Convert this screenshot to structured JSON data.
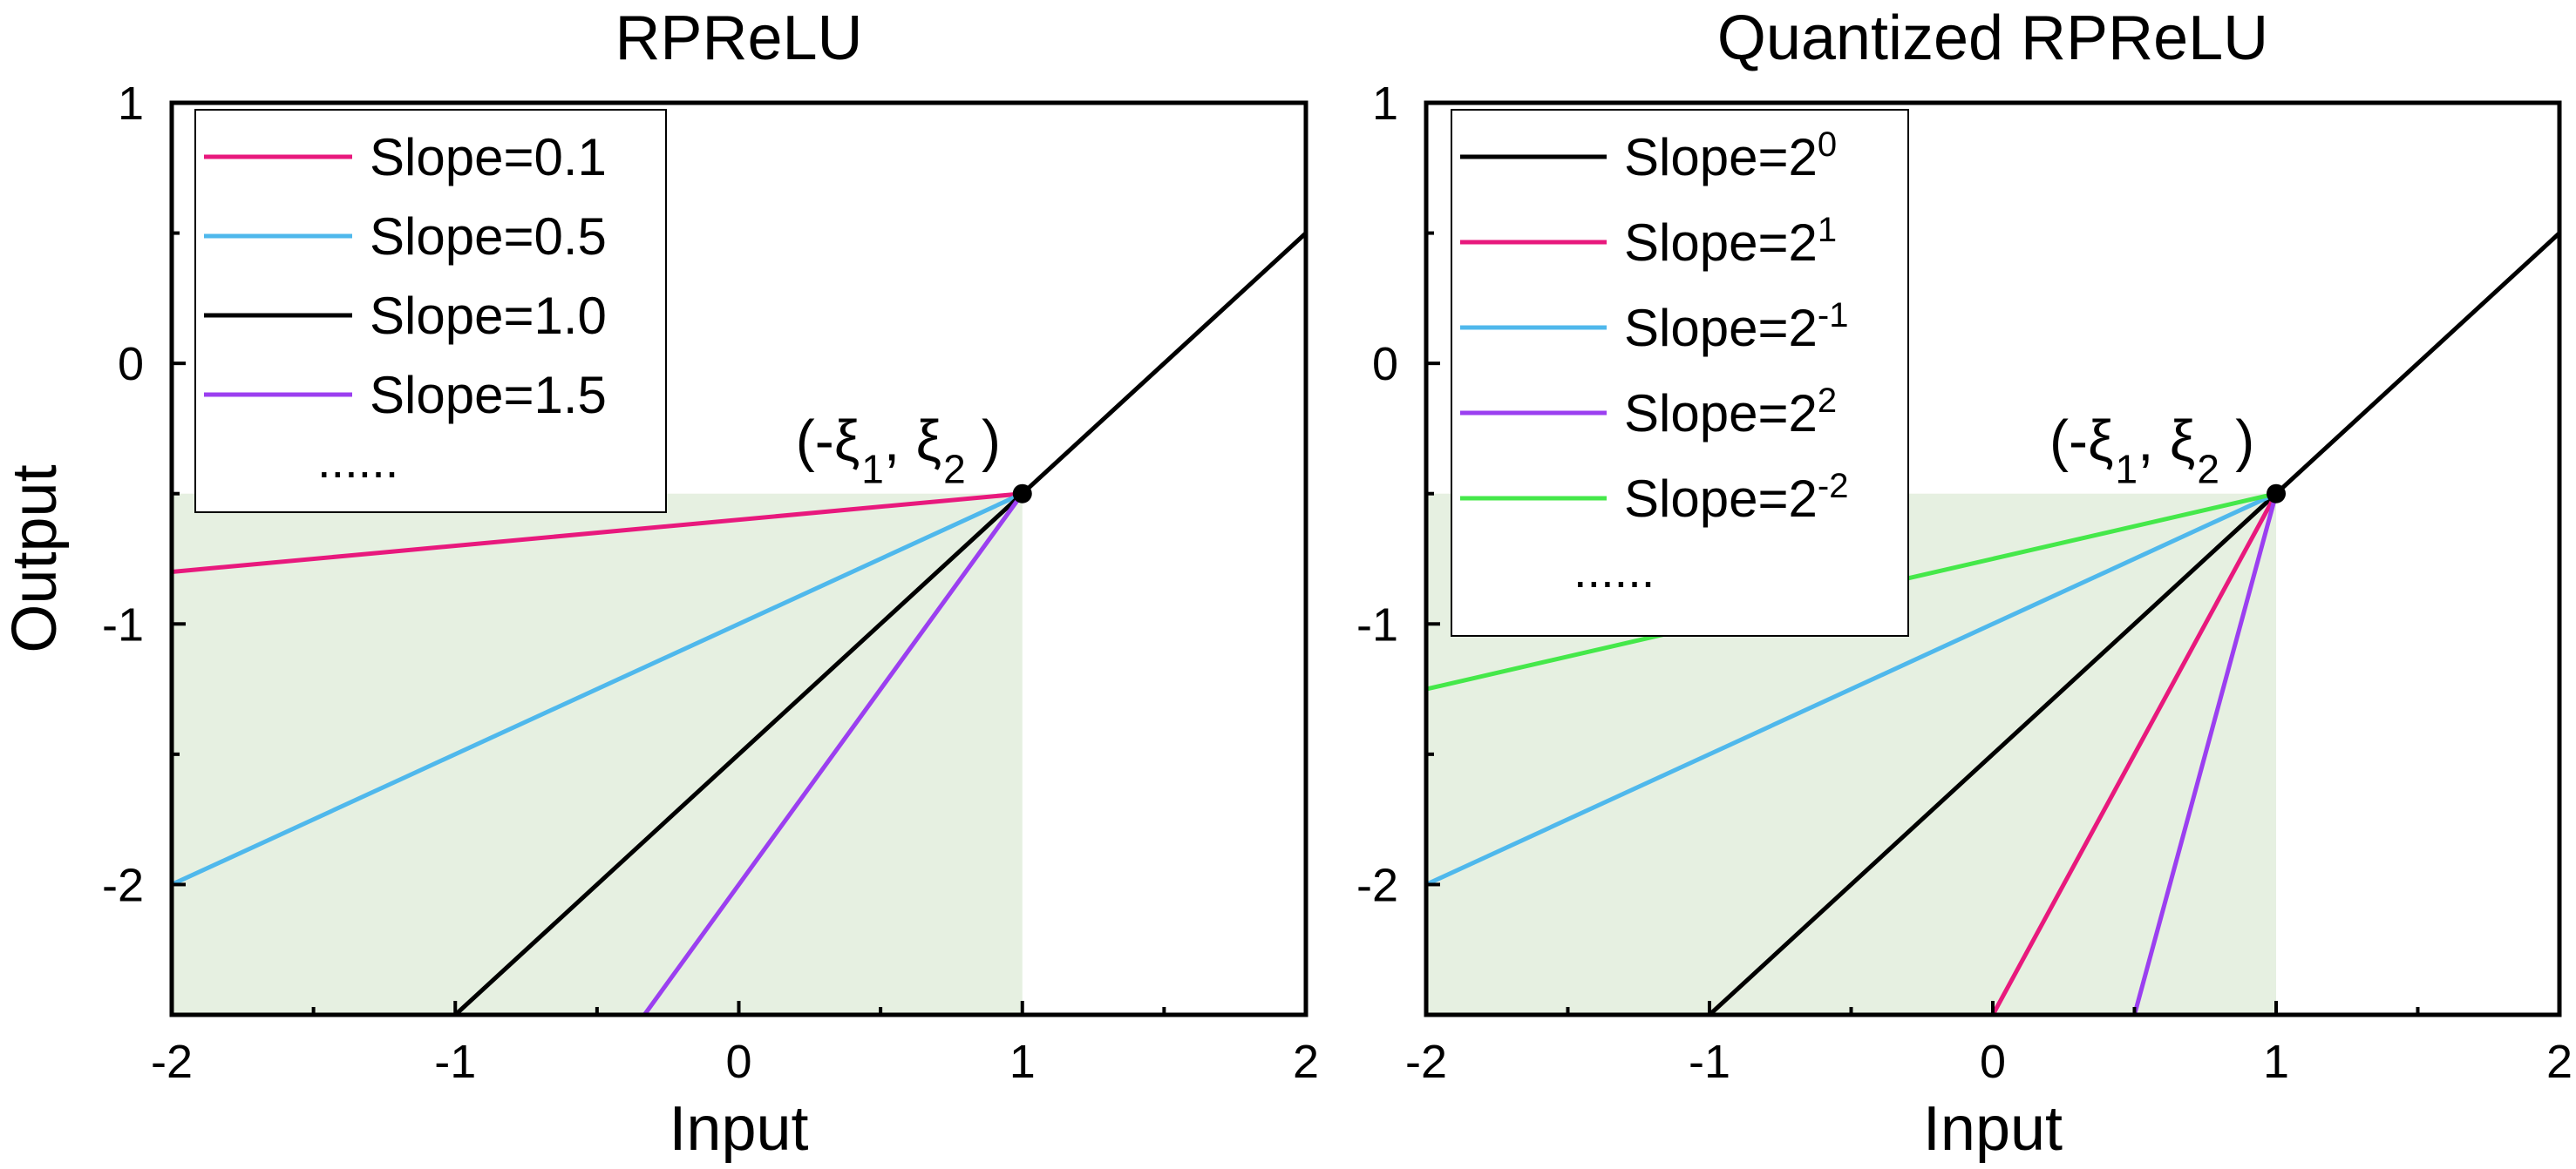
{
  "chart_data": [
    {
      "type": "line",
      "title": "RPReLU",
      "xlabel": "Input",
      "ylabel": "Output",
      "xlim": [
        -2,
        2
      ],
      "ylim": [
        -2.5,
        1
      ],
      "xticks": [
        "-2",
        "-1",
        "0",
        "1",
        "2"
      ],
      "yticks": [
        "1",
        "0",
        "-1",
        "-2"
      ],
      "grid": false,
      "legend_position": "top-left",
      "legend_ellipsis": "......",
      "shaded_region": {
        "x": [
          -2,
          1
        ],
        "y": [
          -2.5,
          -0.5
        ],
        "color": "#e6f0e1"
      },
      "point": {
        "x": 1,
        "y": -0.5,
        "label_parts": [
          "(-ξ",
          "1",
          ", ξ",
          "2",
          " )"
        ]
      },
      "series": [
        {
          "name": "Slope=0.1",
          "label_base": "Slope=0.1",
          "label_sup": "",
          "color": "#e8197d",
          "x": [
            -2,
            1
          ],
          "y": [
            -0.8,
            -0.5
          ],
          "in_legend": true
        },
        {
          "name": "Slope=0.5",
          "label_base": "Slope=0.5",
          "label_sup": "",
          "color": "#4fb8ec",
          "x": [
            -2,
            1
          ],
          "y": [
            -2.0,
            -0.5
          ],
          "in_legend": true
        },
        {
          "name": "Slope=1.0",
          "label_base": "Slope=1.0",
          "label_sup": "",
          "color": "#000000",
          "x": [
            -1,
            2
          ],
          "y": [
            -2.5,
            0.5
          ],
          "in_legend": true
        },
        {
          "name": "Slope=1.5",
          "label_base": "Slope=1.5",
          "label_sup": "",
          "color": "#9b3ff0",
          "x": [
            -0.333,
            1
          ],
          "y": [
            -2.5,
            -0.5
          ],
          "in_legend": true
        }
      ]
    },
    {
      "type": "line",
      "title": "Quantized RPReLU",
      "xlabel": "Input",
      "ylabel": "",
      "xlim": [
        -2,
        2
      ],
      "ylim": [
        -2.5,
        1
      ],
      "xticks": [
        "-2",
        "-1",
        "0",
        "1",
        "2"
      ],
      "yticks": [
        "1",
        "0",
        "-1",
        "-2"
      ],
      "grid": false,
      "legend_position": "top-left",
      "legend_ellipsis": "......",
      "shaded_region": {
        "x": [
          -2,
          1
        ],
        "y": [
          -2.5,
          -0.5
        ],
        "color": "#e6f0e1"
      },
      "point": {
        "x": 1,
        "y": -0.5,
        "label_parts": [
          "(-ξ",
          "1",
          ", ξ",
          "2",
          " )"
        ]
      },
      "series": [
        {
          "name": "Slope=2^0",
          "label_base": "Slope=2",
          "label_sup": "0",
          "color": "#000000",
          "x": [
            -1,
            2
          ],
          "y": [
            -2.5,
            0.5
          ],
          "in_legend": true
        },
        {
          "name": "Slope=2^1",
          "label_base": "Slope=2",
          "label_sup": "1",
          "color": "#e8197d",
          "x": [
            0,
            1
          ],
          "y": [
            -2.5,
            -0.5
          ],
          "in_legend": true
        },
        {
          "name": "Slope=2^-1",
          "label_base": "Slope=2",
          "label_sup": "-1",
          "color": "#4fb8ec",
          "x": [
            -2,
            1
          ],
          "y": [
            -2.0,
            -0.5
          ],
          "in_legend": true
        },
        {
          "name": "Slope=2^2",
          "label_base": "Slope=2",
          "label_sup": "2",
          "color": "#9b3ff0",
          "x": [
            0.5,
            1
          ],
          "y": [
            -2.5,
            -0.5
          ],
          "in_legend": true
        },
        {
          "name": "Slope=2^-2",
          "label_base": "Slope=2",
          "label_sup": "-2",
          "color": "#45e84a",
          "x": [
            -2,
            1
          ],
          "y": [
            -1.25,
            -0.5
          ],
          "in_legend": true
        }
      ]
    }
  ]
}
